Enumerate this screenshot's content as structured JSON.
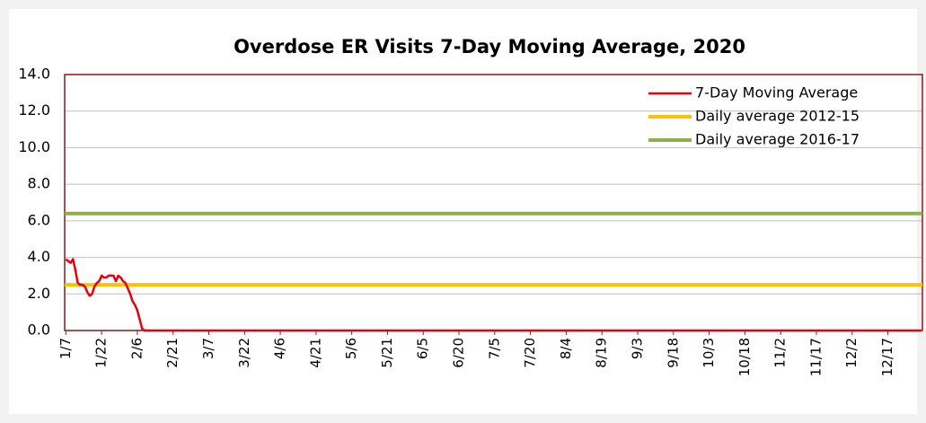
{
  "chart_data": {
    "type": "line",
    "title": "Overdose ER Visits 7-Day Moving Average, 2020",
    "categories": [
      "1/7",
      null,
      null,
      null,
      null,
      null,
      null,
      null,
      null,
      null,
      null,
      null,
      null,
      null,
      null,
      "1/22",
      null,
      null,
      null,
      null,
      null,
      null,
      null,
      null,
      null,
      null,
      null,
      null,
      null,
      null,
      "2/6",
      null,
      null,
      null,
      null,
      null,
      null,
      null,
      null,
      null,
      null,
      null,
      null,
      null,
      null,
      "2/21",
      null,
      null,
      null,
      null,
      null,
      null,
      null,
      null,
      null,
      null,
      null,
      null,
      null,
      null,
      "3/7",
      null,
      null,
      null,
      null,
      null,
      null,
      null,
      null,
      null,
      null,
      null,
      null,
      null,
      null,
      "3/22",
      null,
      null,
      null,
      null,
      null,
      null,
      null,
      null,
      null,
      null,
      null,
      null,
      null,
      null,
      "4/6",
      null,
      null,
      null,
      null,
      null,
      null,
      null,
      null,
      null,
      null,
      null,
      null,
      null,
      null,
      "4/21",
      null,
      null,
      null,
      null,
      null,
      null,
      null,
      null,
      null,
      null,
      null,
      null,
      null,
      null,
      "5/6",
      null,
      null,
      null,
      null,
      null,
      null,
      null,
      null,
      null,
      null,
      null,
      null,
      null,
      null,
      "5/21",
      null,
      null,
      null,
      null,
      null,
      null,
      null,
      null,
      null,
      null,
      null,
      null,
      null,
      null,
      "6/5",
      null,
      null,
      null,
      null,
      null,
      null,
      null,
      null,
      null,
      null,
      null,
      null,
      null,
      null,
      "6/20",
      null,
      null,
      null,
      null,
      null,
      null,
      null,
      null,
      null,
      null,
      null,
      null,
      null,
      null,
      "7/5",
      null,
      null,
      null,
      null,
      null,
      null,
      null,
      null,
      null,
      null,
      null,
      null,
      null,
      null,
      "7/20",
      null,
      null,
      null,
      null,
      null,
      null,
      null,
      null,
      null,
      null,
      null,
      null,
      null,
      null,
      "8/4",
      null,
      null,
      null,
      null,
      null,
      null,
      null,
      null,
      null,
      null,
      null,
      null,
      null,
      null,
      "8/19",
      null,
      null,
      null,
      null,
      null,
      null,
      null,
      null,
      null,
      null,
      null,
      null,
      null,
      null,
      "9/3",
      null,
      null,
      null,
      null,
      null,
      null,
      null,
      null,
      null,
      null,
      null,
      null,
      null,
      null,
      "9/18",
      null,
      null,
      null,
      null,
      null,
      null,
      null,
      null,
      null,
      null,
      null,
      null,
      null,
      null,
      "10/3",
      null,
      null,
      null,
      null,
      null,
      null,
      null,
      null,
      null,
      null,
      null,
      null,
      null,
      null,
      "10/18",
      null,
      null,
      null,
      null,
      null,
      null,
      null,
      null,
      null,
      null,
      null,
      null,
      null,
      null,
      "11/2",
      null,
      null,
      null,
      null,
      null,
      null,
      null,
      null,
      null,
      null,
      null,
      null,
      null,
      null,
      "11/17",
      null,
      null,
      null,
      null,
      null,
      null,
      null,
      null,
      null,
      null,
      null,
      null,
      null,
      null,
      "12/2",
      null,
      null,
      null,
      null,
      null,
      null,
      null,
      null,
      null,
      null,
      null,
      null,
      null,
      null,
      "12/17",
      null,
      null,
      null,
      null,
      null,
      null,
      null,
      null,
      null,
      null,
      null,
      null,
      null,
      null
    ],
    "series": [
      {
        "name": "7-Day Moving Average",
        "color": "#e8000b",
        "values": [
          3.9,
          3.8,
          3.7,
          3.9,
          3.3,
          2.6,
          2.5,
          2.5,
          2.4,
          2.1,
          1.9,
          2.0,
          2.4,
          2.6,
          2.7,
          3.0,
          2.9,
          2.9,
          3.0,
          3.0,
          3.0,
          2.7,
          3.0,
          2.9,
          2.7,
          2.6,
          2.3,
          2.0,
          1.6,
          1.4,
          1.1,
          0.6,
          0.1,
          0,
          0,
          0,
          0,
          0,
          0,
          0,
          0,
          0,
          0,
          0,
          0,
          0,
          0,
          0,
          0,
          0,
          0,
          0,
          0,
          0,
          0,
          0,
          0,
          0,
          0,
          0,
          0,
          0,
          0,
          0,
          0,
          0,
          0,
          0,
          0,
          0,
          0,
          0,
          0,
          0,
          0,
          0,
          0,
          0,
          0,
          0,
          0,
          0,
          0,
          0,
          0,
          0,
          0,
          0,
          0,
          0,
          0,
          0,
          0,
          0,
          0,
          0,
          0,
          0,
          0,
          0,
          0,
          0,
          0,
          0,
          0,
          0,
          0,
          0,
          0,
          0,
          0,
          0,
          0,
          0,
          0,
          0,
          0,
          0,
          0,
          0,
          0,
          0,
          0,
          0,
          0,
          0,
          0,
          0,
          0,
          0,
          0,
          0,
          0,
          0,
          0,
          0,
          0,
          0,
          0,
          0,
          0,
          0,
          0,
          0,
          0,
          0,
          0,
          0,
          0,
          0,
          0,
          0,
          0,
          0,
          0,
          0,
          0,
          0,
          0,
          0,
          0,
          0,
          0,
          0,
          0,
          0,
          0,
          0,
          0,
          0,
          0,
          0,
          0,
          0,
          0,
          0,
          0,
          0,
          0,
          0,
          0,
          0,
          0,
          0,
          0,
          0,
          0,
          0,
          0,
          0,
          0,
          0,
          0,
          0,
          0,
          0,
          0,
          0,
          0,
          0,
          0,
          0,
          0,
          0,
          0,
          0,
          0,
          0,
          0,
          0,
          0,
          0,
          0,
          0,
          0,
          0,
          0,
          0,
          0,
          0,
          0,
          0,
          0,
          0,
          0,
          0,
          0,
          0,
          0,
          0,
          0,
          0,
          0,
          0,
          0,
          0,
          0,
          0,
          0,
          0,
          0,
          0,
          0,
          0,
          0,
          0,
          0,
          0,
          0,
          0,
          0,
          0,
          0,
          0,
          0,
          0,
          0,
          0,
          0,
          0,
          0,
          0,
          0,
          0,
          0,
          0,
          0,
          0,
          0,
          0,
          0,
          0,
          0,
          0,
          0,
          0,
          0,
          0,
          0,
          0,
          0,
          0,
          0,
          0,
          0,
          0,
          0,
          0,
          0,
          0,
          0,
          0,
          0,
          0,
          0,
          0,
          0,
          0,
          0,
          0,
          0,
          0,
          0,
          0,
          0,
          0,
          0,
          0,
          0,
          0,
          0,
          0,
          0,
          0,
          0,
          0,
          0,
          0,
          0,
          0,
          0,
          0,
          0,
          0,
          0,
          0,
          0,
          0,
          0,
          0,
          0,
          0,
          0,
          0,
          0,
          0,
          0,
          0,
          0,
          0,
          0,
          0,
          0,
          0,
          0,
          0,
          0,
          0,
          0,
          0,
          0,
          0,
          0,
          0,
          0,
          0,
          0,
          0,
          0,
          0
        ]
      }
    ],
    "reference_lines": [
      {
        "name": "Daily average 2012-15",
        "color": "#ffc000",
        "value": 2.5
      },
      {
        "name": "Daily average 2016-17",
        "color": "#8db14a",
        "value": 6.4
      }
    ],
    "ylim": [
      0,
      14
    ],
    "yticks": [
      {
        "value": 0,
        "label": "0.0"
      },
      {
        "value": 2,
        "label": "2.0"
      },
      {
        "value": 4,
        "label": "4.0"
      },
      {
        "value": 6,
        "label": "6.0"
      },
      {
        "value": 8,
        "label": "8.0"
      },
      {
        "value": 10,
        "label": "10.0"
      },
      {
        "value": 12,
        "label": "12.0"
      },
      {
        "value": 14,
        "label": "14.0"
      }
    ],
    "grid": true,
    "legend": "top-right"
  }
}
